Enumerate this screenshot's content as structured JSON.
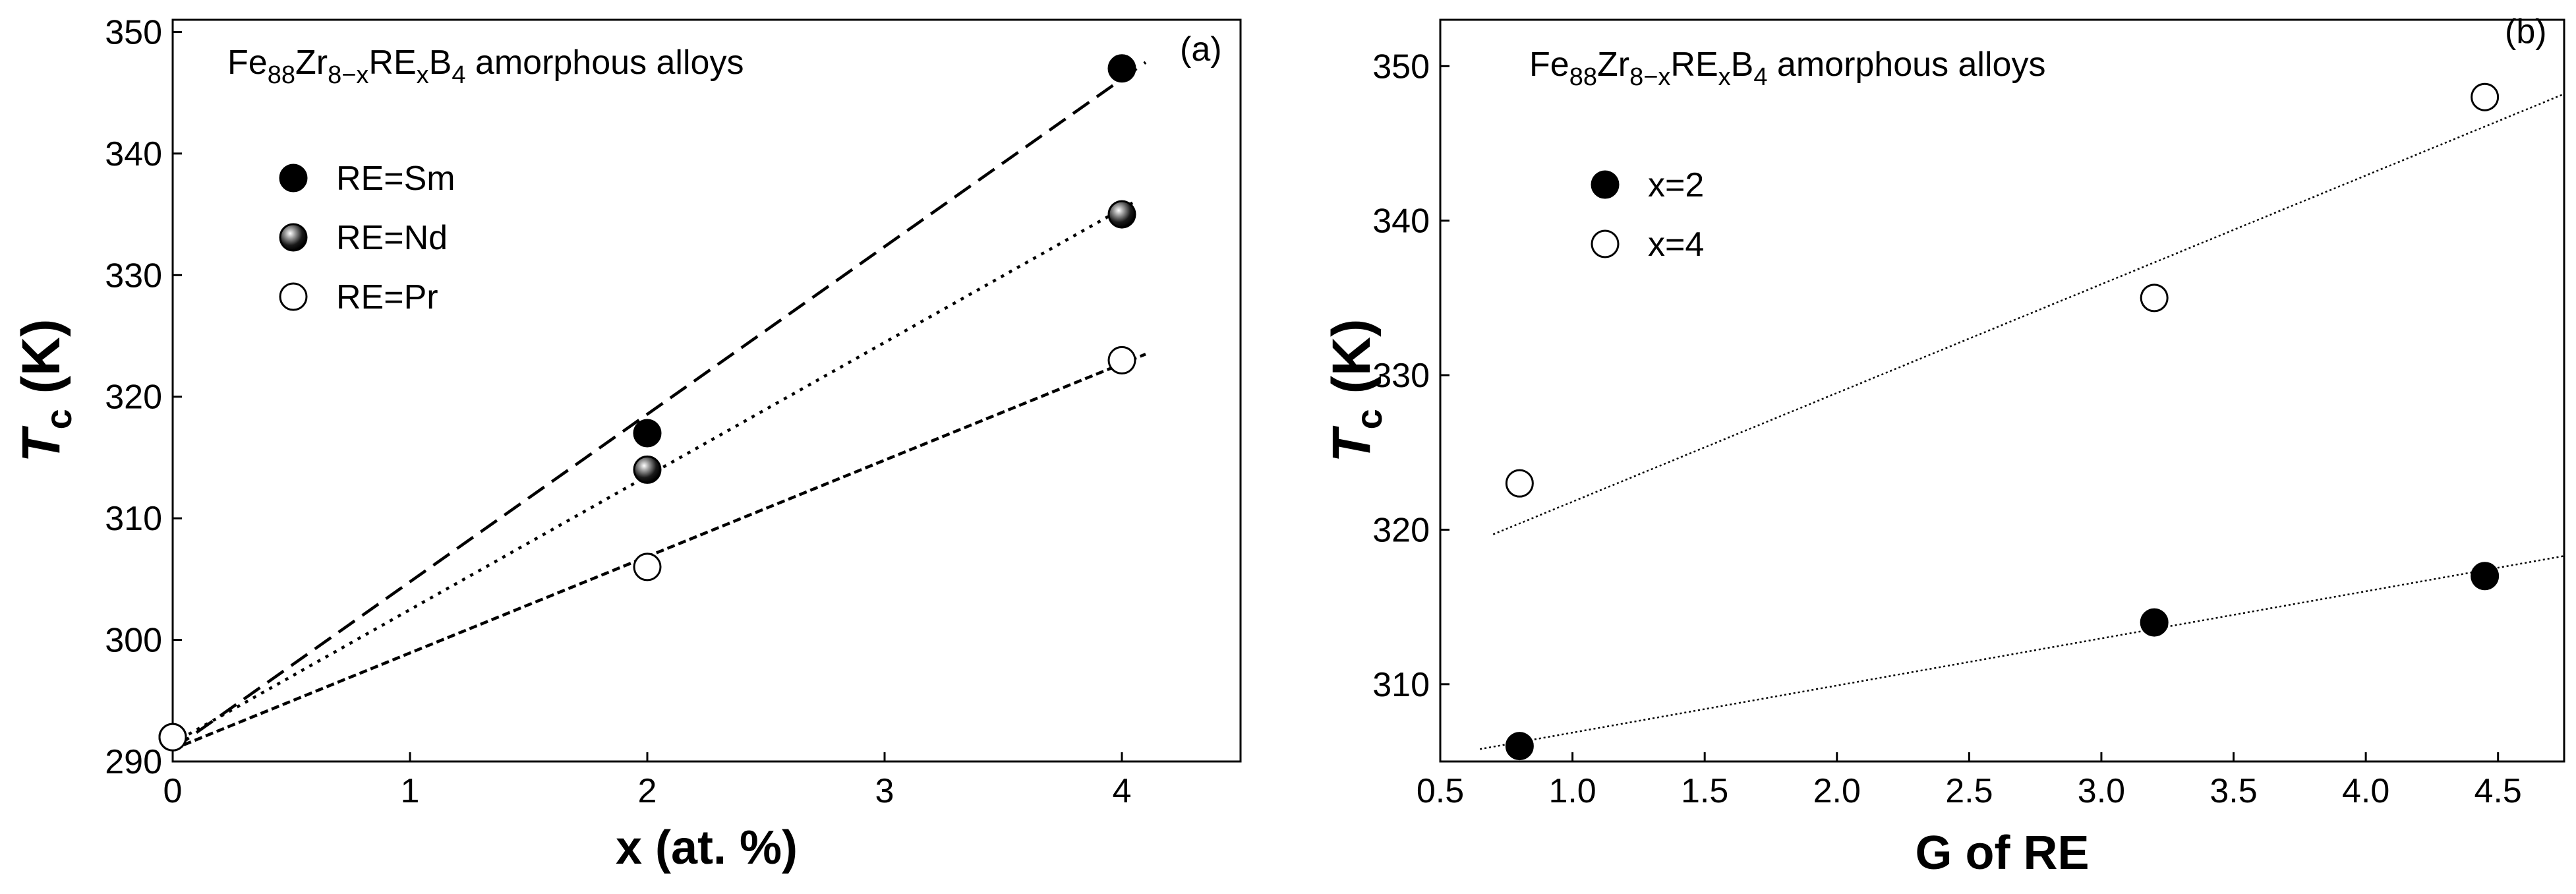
{
  "chart_data": [
    {
      "type": "scatter",
      "panel_label": "(a)",
      "title_parts": {
        "base1": "Fe",
        "sub1": "88",
        "base2": "Zr",
        "sub2": "8−x",
        "base3": "RE",
        "sub3": "x",
        "base4": "B",
        "sub4": "4",
        "suffix": " amorphous alloys"
      },
      "xlabel": "x (at. %)",
      "ylabel_main": "T",
      "ylabel_sub": "c",
      "ylabel_unit": " (K)",
      "xlim": [
        0,
        4.5
      ],
      "ylim": [
        290,
        351
      ],
      "xticks": [
        0,
        1,
        2,
        3,
        4
      ],
      "xtick_labels": [
        "0",
        "1",
        "2",
        "3",
        "4"
      ],
      "yticks": [
        290,
        300,
        310,
        320,
        330,
        340,
        350
      ],
      "ytick_labels": [
        "290",
        "300",
        "310",
        "320",
        "330",
        "340",
        "350"
      ],
      "grid": false,
      "legend_position": "upper-left",
      "series": [
        {
          "name": "RE=Sm",
          "marker": "filled",
          "x": [
            0,
            2,
            4
          ],
          "y": [
            292,
            317,
            347
          ],
          "fit": {
            "x": [
              0,
              4.1
            ],
            "y": [
              291,
              347.5
            ],
            "style": "dashed"
          }
        },
        {
          "name": "RE=Nd",
          "marker": "shaded",
          "x": [
            0,
            2,
            4
          ],
          "y": [
            292,
            314,
            335
          ],
          "fit": {
            "x": [
              0,
              4.05
            ],
            "y": [
              291.5,
              336
            ],
            "style": "dotted"
          }
        },
        {
          "name": "RE=Pr",
          "marker": "open",
          "x": [
            0,
            2,
            4
          ],
          "y": [
            292,
            306,
            323
          ],
          "fit": {
            "x": [
              0,
              4.1
            ],
            "y": [
              291,
              323.5
            ],
            "style": "short-dashed"
          }
        }
      ]
    },
    {
      "type": "scatter",
      "panel_label": "(b)",
      "title_parts": {
        "base1": "Fe",
        "sub1": "88",
        "base2": "Zr",
        "sub2": "8−x",
        "base3": "RE",
        "sub3": "x",
        "base4": "B",
        "sub4": "4",
        "suffix": " amorphous alloys"
      },
      "xlabel": "G of RE",
      "ylabel_main": "T",
      "ylabel_sub": "c",
      "ylabel_unit": " (K)",
      "xlim": [
        0.5,
        4.75
      ],
      "ylim": [
        305,
        353
      ],
      "xticks": [
        0.5,
        1.0,
        1.5,
        2.0,
        2.5,
        3.0,
        3.5,
        4.0,
        4.5
      ],
      "xtick_labels": [
        "0.5",
        "1.0",
        "1.5",
        "2.0",
        "2.5",
        "3.0",
        "3.5",
        "4.0",
        "4.5"
      ],
      "yticks": [
        310,
        320,
        330,
        340,
        350
      ],
      "ytick_labels": [
        "310",
        "320",
        "330",
        "340",
        "350"
      ],
      "grid": false,
      "legend_position": "upper-left",
      "series": [
        {
          "name": "x=2",
          "marker": "filled",
          "x": [
            0.8,
            3.2,
            4.45
          ],
          "y": [
            306,
            314,
            317
          ],
          "fit": {
            "x": [
              0.65,
              4.75
            ],
            "y": [
              305.8,
              318.3
            ],
            "style": "fine-dotted"
          }
        },
        {
          "name": "x=4",
          "marker": "open",
          "x": [
            0.8,
            3.2,
            4.45
          ],
          "y": [
            323,
            335,
            348
          ],
          "fit": {
            "x": [
              0.7,
              4.75
            ],
            "y": [
              319.7,
              348.2
            ],
            "style": "fine-dotted"
          }
        }
      ]
    }
  ]
}
